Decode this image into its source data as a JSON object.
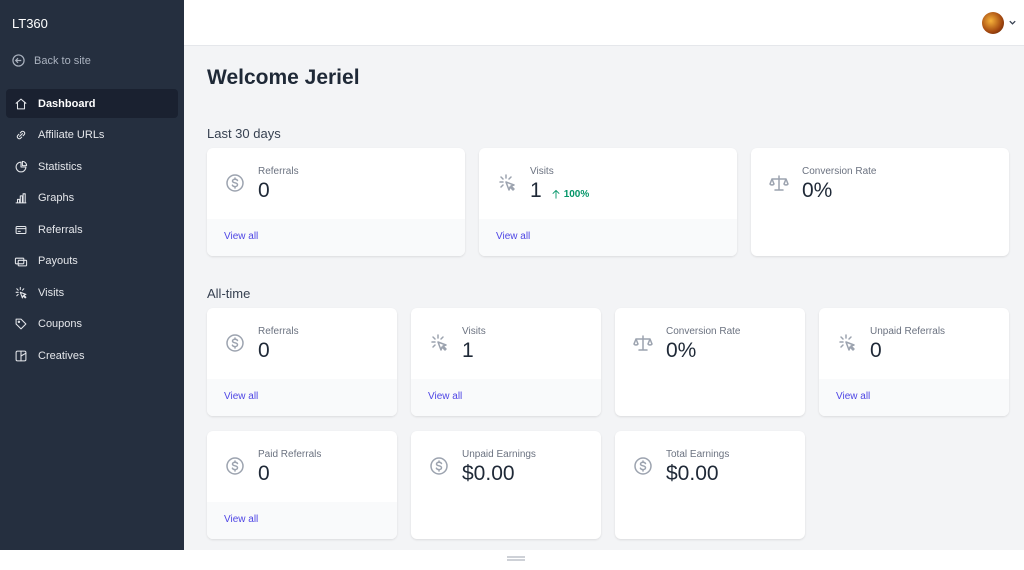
{
  "sidebar": {
    "brand": "LT360",
    "back": "Back to site",
    "nav": [
      "Dashboard",
      "Affiliate URLs",
      "Statistics",
      "Graphs",
      "Referrals",
      "Payouts",
      "Visits",
      "Coupons",
      "Creatives"
    ]
  },
  "main": {
    "title": "Welcome Jeriel",
    "sections": [
      {
        "heading": "Last 30 days",
        "cards": [
          {
            "label": "Referrals",
            "value": "0",
            "link": "View all"
          },
          {
            "label": "Visits",
            "value": "1",
            "change": "100%",
            "link": "View all"
          },
          {
            "label": "Conversion Rate",
            "value": "0%"
          }
        ]
      },
      {
        "heading": "All-time",
        "cards": [
          {
            "label": "Referrals",
            "value": "0",
            "link": "View all"
          },
          {
            "label": "Visits",
            "value": "1",
            "link": "View all"
          },
          {
            "label": "Conversion Rate",
            "value": "0%"
          },
          {
            "label": "Unpaid Referrals",
            "value": "0",
            "link": "View all"
          },
          {
            "label": "Paid Referrals",
            "value": "0",
            "link": "View all"
          },
          {
            "label": "Unpaid Earnings",
            "value": "$0.00"
          },
          {
            "label": "Total Earnings",
            "value": "$0.00"
          }
        ]
      }
    ]
  }
}
